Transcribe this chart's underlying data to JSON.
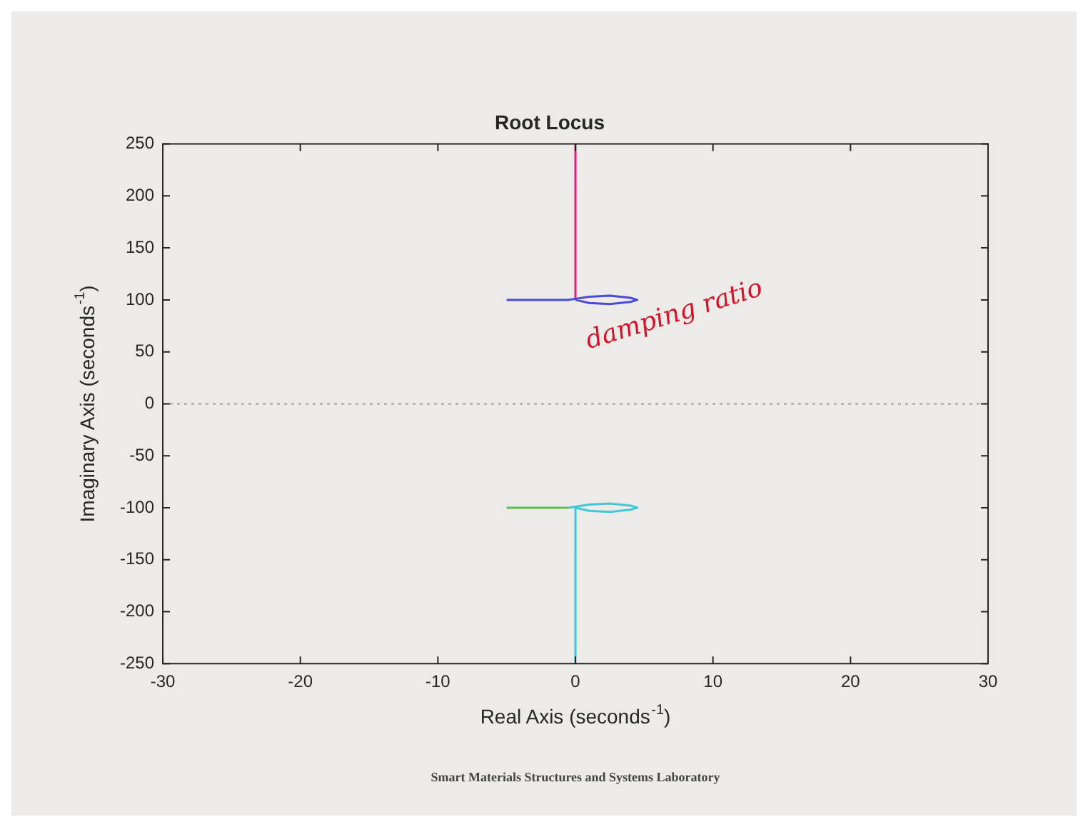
{
  "chart_data": {
    "type": "line",
    "title": "Root Locus",
    "xlabel": "Real Axis (seconds$^{-1}$)",
    "ylabel": "Imaginary Axis (seconds$^{-1}$)",
    "xlim": [
      -30,
      30
    ],
    "xticks": [
      -30,
      -20,
      -10,
      0,
      10,
      20,
      30
    ],
    "ylim": [
      -250,
      250
    ],
    "yticks": [
      -250,
      -200,
      -150,
      -100,
      -50,
      0,
      50,
      100,
      150,
      200,
      250
    ],
    "grid": false,
    "legend": false,
    "marker": "none",
    "line_style": "solid",
    "series": [
      {
        "color": "#4a4ad8",
        "x": [
          -5,
          -2,
          -0.5,
          1,
          2.5,
          4,
          4.5,
          4,
          2.5,
          1,
          0
        ],
        "values": [
          100,
          100,
          100,
          103,
          104,
          102,
          100,
          98,
          96,
          97,
          100
        ]
      },
      {
        "color": "#e0207a",
        "x": [
          0,
          0
        ],
        "values": [
          100,
          250
        ]
      },
      {
        "color": "#5cbf4a",
        "x": [
          -5,
          -2,
          -0.5
        ],
        "values": [
          -100,
          -100,
          -100
        ]
      },
      {
        "color": "#40c8d8",
        "x": [
          -0.5,
          1,
          2.5,
          4,
          4.5,
          4,
          2.5,
          1,
          0,
          0
        ],
        "values": [
          -100,
          -97,
          -96,
          -98,
          -100,
          -102,
          -104,
          -103,
          -100,
          -250
        ]
      }
    ],
    "ref_lines": [
      {
        "axis": "y",
        "value": 0,
        "color": "#a0a0a0",
        "line_style": "dotted"
      }
    ],
    "annotations": [
      "damping ratio",
      "Smart Materials Structures and Systems Laboratory"
    ]
  }
}
